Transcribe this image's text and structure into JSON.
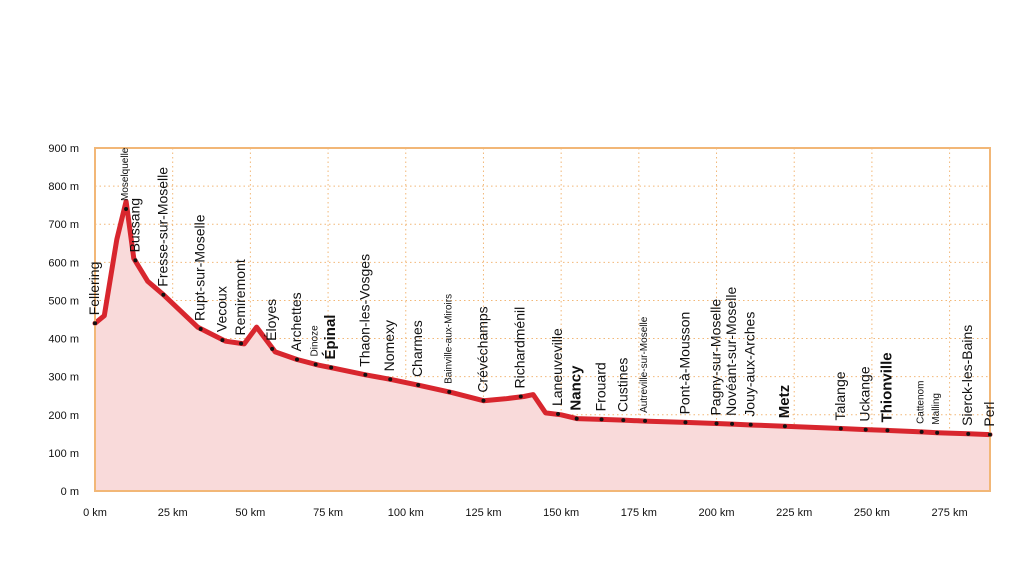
{
  "chart_data": {
    "type": "area",
    "title": "",
    "xlabel": "",
    "ylabel": "",
    "xlim": [
      0,
      288
    ],
    "ylim": [
      0,
      900
    ],
    "grid": true,
    "x_ticks": [
      "0 km",
      "25 km",
      "50 km",
      "75 km",
      "100 km",
      "125 km",
      "150 km",
      "175 km",
      "200 km",
      "225 km",
      "250 km",
      "275 km"
    ],
    "x_tick_values": [
      0,
      25,
      50,
      75,
      100,
      125,
      150,
      175,
      200,
      225,
      250,
      275
    ],
    "y_ticks": [
      "0 m",
      "100 m",
      "200 m",
      "300 m",
      "400 m",
      "500 m",
      "600 m",
      "700 m",
      "800 m",
      "900 m"
    ],
    "y_tick_values": [
      0,
      100,
      200,
      300,
      400,
      500,
      600,
      700,
      800,
      900
    ],
    "colors": {
      "line": "#d8262e",
      "fill": "#f9dada",
      "grid": "#f2b777",
      "frame": "#f2b777",
      "dot": "#111111"
    },
    "profile": {
      "x": [
        0,
        3,
        7,
        10,
        12.5,
        17,
        22,
        33,
        42,
        48,
        52,
        58,
        65,
        72,
        77,
        87,
        95,
        105,
        115,
        125,
        132,
        138,
        141,
        145,
        150,
        155,
        163,
        170,
        178,
        190,
        200,
        206,
        212,
        222,
        240,
        248,
        255,
        266,
        271,
        281,
        288
      ],
      "y": [
        440,
        460,
        660,
        760,
        610,
        550,
        515,
        430,
        393,
        386,
        430,
        365,
        345,
        330,
        322,
        305,
        293,
        276,
        258,
        237,
        242,
        248,
        253,
        205,
        200,
        190,
        188,
        186,
        183,
        180,
        177,
        175,
        173,
        170,
        164,
        161,
        159,
        155,
        153,
        150,
        148
      ]
    },
    "places": [
      {
        "name": "Fellering",
        "km": 0,
        "alt": 440,
        "size": "large"
      },
      {
        "name": "Moselquelle",
        "km": 10,
        "alt": 740,
        "size": "small"
      },
      {
        "name": "Bussang",
        "km": 13,
        "alt": 605,
        "size": "large"
      },
      {
        "name": "Fresse-sur-Moselle",
        "km": 22,
        "alt": 515,
        "size": "large"
      },
      {
        "name": "Rupt-sur-Moselle",
        "km": 34,
        "alt": 425,
        "size": "large"
      },
      {
        "name": "Vecoux",
        "km": 41,
        "alt": 396,
        "size": "large"
      },
      {
        "name": "Remiremont",
        "km": 47,
        "alt": 387,
        "size": "large"
      },
      {
        "name": "Éloyes",
        "km": 57,
        "alt": 373,
        "size": "large"
      },
      {
        "name": "Archettes",
        "km": 65,
        "alt": 345,
        "size": "large"
      },
      {
        "name": "Dinoze",
        "km": 71,
        "alt": 332,
        "size": "small"
      },
      {
        "name": "Épinal",
        "km": 76,
        "alt": 324,
        "size": "bold"
      },
      {
        "name": "Thaon-les-Vosges",
        "km": 87,
        "alt": 305,
        "size": "large"
      },
      {
        "name": "Nomexy",
        "km": 95,
        "alt": 293,
        "size": "large"
      },
      {
        "name": "Charmes",
        "km": 104,
        "alt": 278,
        "size": "large"
      },
      {
        "name": "Bainville-aux-Miroirs",
        "km": 114,
        "alt": 260,
        "size": "small"
      },
      {
        "name": "Crévéchamps",
        "km": 125,
        "alt": 237,
        "size": "large"
      },
      {
        "name": "Richardménil",
        "km": 137,
        "alt": 248,
        "size": "large"
      },
      {
        "name": "Laneuveville",
        "km": 149,
        "alt": 202,
        "size": "large"
      },
      {
        "name": "Nancy",
        "km": 155,
        "alt": 190,
        "size": "bold"
      },
      {
        "name": "Frouard",
        "km": 163,
        "alt": 188,
        "size": "large"
      },
      {
        "name": "Custines",
        "km": 170,
        "alt": 186,
        "size": "large"
      },
      {
        "name": "Autreville-sur-Moselle",
        "km": 177,
        "alt": 184,
        "size": "small"
      },
      {
        "name": "Pont-à-Mousson",
        "km": 190,
        "alt": 180,
        "size": "large"
      },
      {
        "name": "Pagny-sur-Moselle",
        "km": 200,
        "alt": 177,
        "size": "large"
      },
      {
        "name": "Novéant-sur-Moselle",
        "km": 205,
        "alt": 176,
        "size": "large"
      },
      {
        "name": "Jouy-aux-Arches",
        "km": 211,
        "alt": 174,
        "size": "large"
      },
      {
        "name": "Metz",
        "km": 222,
        "alt": 170,
        "size": "bold"
      },
      {
        "name": "Talange",
        "km": 240,
        "alt": 164,
        "size": "large"
      },
      {
        "name": "Uckange",
        "km": 248,
        "alt": 161,
        "size": "large"
      },
      {
        "name": "Thionville",
        "km": 255,
        "alt": 159,
        "size": "bold"
      },
      {
        "name": "Cattenom",
        "km": 266,
        "alt": 155,
        "size": "small"
      },
      {
        "name": "Malling",
        "km": 271,
        "alt": 153,
        "size": "small"
      },
      {
        "name": "Sierck-les-Bains",
        "km": 281,
        "alt": 150,
        "size": "large"
      },
      {
        "name": "Perl",
        "km": 288,
        "alt": 148,
        "size": "large"
      }
    ]
  }
}
